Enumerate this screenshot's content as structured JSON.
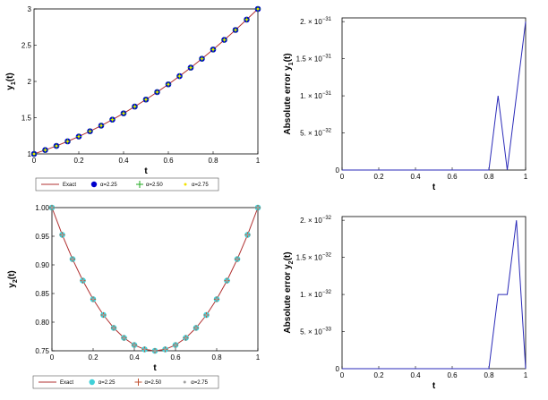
{
  "chart_data": [
    {
      "type": "line",
      "xlabel": "t",
      "ylabel_base": "y",
      "ylabel_sub": "1",
      "ylabel_arg": "(t)",
      "xlim": [
        0,
        1
      ],
      "ylim": [
        1,
        3
      ],
      "xticks": [
        0,
        0.2,
        0.4,
        0.6,
        0.8,
        1
      ],
      "xtick_labels": [
        "0",
        "0.2",
        "0.4",
        "0.6",
        "0.8",
        "1"
      ],
      "yticks": [
        1,
        1.5,
        2,
        2.5,
        3
      ],
      "ytick_labels": [
        "1",
        "1.5",
        "2",
        "2.5",
        "3"
      ],
      "x": [
        0,
        0.05,
        0.1,
        0.15,
        0.2,
        0.25,
        0.3,
        0.35,
        0.4,
        0.45,
        0.5,
        0.55,
        0.6,
        0.65,
        0.7,
        0.75,
        0.8,
        0.85,
        0.9,
        0.95,
        1
      ],
      "series": [
        {
          "name": "Exact",
          "color": "#b03030",
          "marker": "line",
          "values": [
            1,
            1.053,
            1.11,
            1.173,
            1.24,
            1.313,
            1.39,
            1.473,
            1.56,
            1.653,
            1.75,
            1.853,
            1.96,
            2.073,
            2.19,
            2.313,
            2.44,
            2.573,
            2.71,
            2.853,
            3
          ]
        },
        {
          "name": "α=2.25",
          "color": "#0000cc",
          "marker": "circle",
          "values": [
            1,
            1.053,
            1.11,
            1.173,
            1.24,
            1.313,
            1.39,
            1.473,
            1.56,
            1.653,
            1.75,
            1.853,
            1.96,
            2.073,
            2.19,
            2.313,
            2.44,
            2.573,
            2.71,
            2.853,
            3
          ]
        },
        {
          "name": "α=2.50",
          "color": "#22aa22",
          "marker": "plus",
          "values": [
            1,
            1.053,
            1.11,
            1.173,
            1.24,
            1.313,
            1.39,
            1.473,
            1.56,
            1.653,
            1.75,
            1.853,
            1.96,
            2.073,
            2.19,
            2.313,
            2.44,
            2.573,
            2.71,
            2.853,
            3
          ]
        },
        {
          "name": "α=2.75",
          "color": "#f2e200",
          "marker": "dot",
          "values": [
            1,
            1.053,
            1.11,
            1.173,
            1.24,
            1.313,
            1.39,
            1.473,
            1.56,
            1.653,
            1.75,
            1.853,
            1.96,
            2.073,
            2.19,
            2.313,
            2.44,
            2.573,
            2.71,
            2.853,
            3
          ]
        }
      ],
      "legend": "bottom"
    },
    {
      "type": "line",
      "xlabel": "t",
      "ylabel_base": "Absolute error y",
      "ylabel_sub": "1",
      "ylabel_arg": "(t)",
      "xlim": [
        0,
        1
      ],
      "ylim": [
        0,
        2.05e-31
      ],
      "xticks": [
        0,
        0.2,
        0.4,
        0.6,
        0.8,
        1
      ],
      "xtick_labels": [
        "0",
        "0.2",
        "0.4",
        "0.6",
        "0.8",
        "1"
      ],
      "yticks": [
        0,
        5e-32,
        1e-31,
        1.5e-31,
        2e-31
      ],
      "ytick_labels": [
        "0",
        "5. × 10",
        "1. × 10",
        "1.5 × 10",
        "2. × 10"
      ],
      "ytick_exponents": [
        "",
        "−32",
        "−31",
        "−31",
        "−31"
      ],
      "x": [
        0,
        0.8,
        0.85,
        0.9,
        1
      ],
      "series": [
        {
          "color": "#2a2ab8",
          "marker": "line",
          "values": [
            0,
            0,
            1e-31,
            0,
            2e-31
          ]
        }
      ]
    },
    {
      "type": "line",
      "xlabel": "t",
      "ylabel_base": "y",
      "ylabel_sub": "2",
      "ylabel_arg": "(t)",
      "xlim": [
        0,
        1
      ],
      "ylim": [
        0.75,
        1.0
      ],
      "xticks": [
        0,
        0.2,
        0.4,
        0.6,
        0.8,
        1
      ],
      "xtick_labels": [
        "0",
        "0.2",
        "0.4",
        "0.6",
        "0.8",
        "1"
      ],
      "yticks": [
        0.75,
        0.8,
        0.85,
        0.9,
        0.95,
        1.0
      ],
      "ytick_labels": [
        "0.75",
        "0.80",
        "0.85",
        "0.90",
        "0.95",
        "1.00"
      ],
      "x": [
        0,
        0.05,
        0.1,
        0.15,
        0.2,
        0.25,
        0.3,
        0.35,
        0.4,
        0.45,
        0.5,
        0.55,
        0.6,
        0.65,
        0.7,
        0.75,
        0.8,
        0.85,
        0.9,
        0.95,
        1
      ],
      "series": [
        {
          "name": "Exact",
          "color": "#b03030",
          "marker": "line",
          "values": [
            1,
            0.9525,
            0.91,
            0.8725,
            0.84,
            0.8125,
            0.79,
            0.7725,
            0.76,
            0.7525,
            0.75,
            0.7525,
            0.76,
            0.7725,
            0.79,
            0.8125,
            0.84,
            0.8725,
            0.91,
            0.9525,
            1
          ]
        },
        {
          "name": "α=2.25",
          "color": "#40d0d8",
          "marker": "circle",
          "values": [
            1,
            0.9525,
            0.91,
            0.8725,
            0.84,
            0.8125,
            0.79,
            0.7725,
            0.76,
            0.7525,
            0.75,
            0.7525,
            0.76,
            0.7725,
            0.79,
            0.8125,
            0.84,
            0.8725,
            0.91,
            0.9525,
            1
          ]
        },
        {
          "name": "α=2.50",
          "color": "#c05030",
          "marker": "plus",
          "values": [
            1,
            0.9525,
            0.91,
            0.8725,
            0.84,
            0.8125,
            0.79,
            0.7725,
            0.76,
            0.7525,
            0.75,
            0.7525,
            0.76,
            0.7725,
            0.79,
            0.8125,
            0.84,
            0.8725,
            0.91,
            0.9525,
            1
          ]
        },
        {
          "name": "α=2.75",
          "color": "#a0a0a0",
          "marker": "dot",
          "values": [
            1,
            0.9525,
            0.91,
            0.8725,
            0.84,
            0.8125,
            0.79,
            0.7725,
            0.76,
            0.7525,
            0.75,
            0.7525,
            0.76,
            0.7725,
            0.79,
            0.8125,
            0.84,
            0.8725,
            0.91,
            0.9525,
            1
          ]
        }
      ],
      "legend": "bottom"
    },
    {
      "type": "line",
      "xlabel": "t",
      "ylabel_base": "Absolute error y",
      "ylabel_sub": "2",
      "ylabel_arg": "(t)",
      "xlim": [
        0,
        1
      ],
      "ylim": [
        0,
        2.05e-32
      ],
      "xticks": [
        0,
        0.2,
        0.4,
        0.6,
        0.8,
        1
      ],
      "xtick_labels": [
        "0",
        "0.2",
        "0.4",
        "0.6",
        "0.8",
        "1"
      ],
      "yticks": [
        0,
        5e-33,
        1e-32,
        1.5e-32,
        2e-32
      ],
      "ytick_labels": [
        "0",
        "5. × 10",
        "1. × 10",
        "1.5 × 10",
        "2. × 10"
      ],
      "ytick_exponents": [
        "",
        "−33",
        "−32",
        "−32",
        "−32"
      ],
      "x": [
        0,
        0.8,
        0.85,
        0.9,
        0.95,
        1
      ],
      "series": [
        {
          "color": "#2a2ab8",
          "marker": "line",
          "values": [
            0,
            0,
            1e-32,
            1e-32,
            2e-32,
            0
          ]
        }
      ]
    }
  ]
}
